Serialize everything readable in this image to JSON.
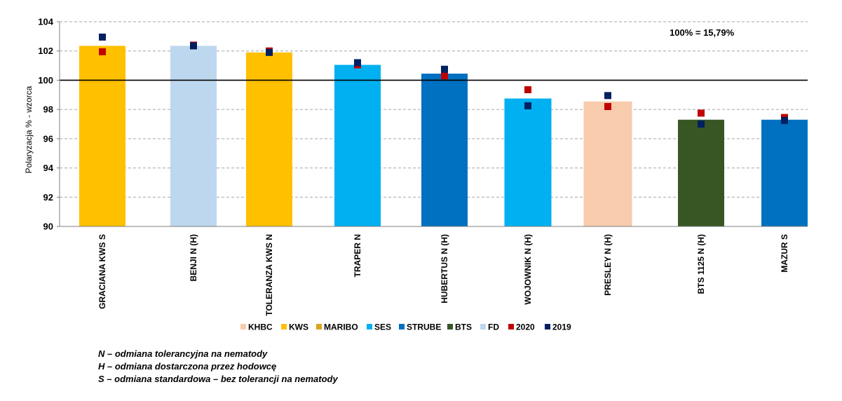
{
  "chart_data": {
    "type": "bar",
    "title": "",
    "xlabel": "",
    "ylabel": "Polaryzacja % - wzorca",
    "ylim": [
      90,
      104
    ],
    "yticks": [
      90,
      92,
      94,
      96,
      98,
      100,
      102,
      104
    ],
    "reference_line": 100,
    "grid": true,
    "annotation": "100% = 15,79%",
    "categories": [
      "GRACIANA KWS S",
      "BENJI N (H)",
      "TOLERANZA KWS N",
      "TRAPER N",
      "HUBERTUS N (H)",
      "WOJOWNIK N (H)",
      "PRESLEY N (H)",
      "BTS 1125 N (H)",
      "MAZUR S"
    ],
    "values": [
      102.35,
      102.35,
      101.9,
      101.05,
      100.45,
      98.75,
      98.55,
      97.3,
      97.3
    ],
    "bar_groups": [
      "KWS",
      "FD",
      "KWS",
      "SES",
      "STRUBE",
      "SES",
      "KHBC",
      "BTS",
      "STRUBE"
    ],
    "series": [
      {
        "name": "2020",
        "type": "scatter",
        "color": "#C00000",
        "values": [
          101.95,
          102.4,
          102.0,
          101.05,
          100.3,
          99.35,
          98.2,
          97.75,
          97.45
        ]
      },
      {
        "name": "2019",
        "type": "scatter",
        "color": "#002060",
        "values": [
          102.95,
          102.35,
          101.9,
          101.2,
          100.75,
          98.25,
          98.95,
          97.0,
          97.25
        ]
      }
    ],
    "legend": {
      "position": "bottom",
      "entries": [
        {
          "name": "KHBC",
          "color": "#F8CBAD"
        },
        {
          "name": "KWS",
          "color": "#FFC000"
        },
        {
          "name": "MARIBO",
          "color": "#DAA520"
        },
        {
          "name": "SES",
          "color": "#00B0F0"
        },
        {
          "name": "STRUBE",
          "color": "#0070C0"
        },
        {
          "name": "BTS",
          "color": "#375623"
        },
        {
          "name": "FD",
          "color": "#BDD7EE"
        },
        {
          "name": "2020",
          "color": "#C00000"
        },
        {
          "name": "2019",
          "color": "#002060"
        }
      ]
    }
  },
  "notes": [
    "N – odmiana tolerancyjna na nematody",
    "H – odmiana dostarczona przez hodowcę",
    "S – odmiana standardowa – bez tolerancji na nematody"
  ]
}
